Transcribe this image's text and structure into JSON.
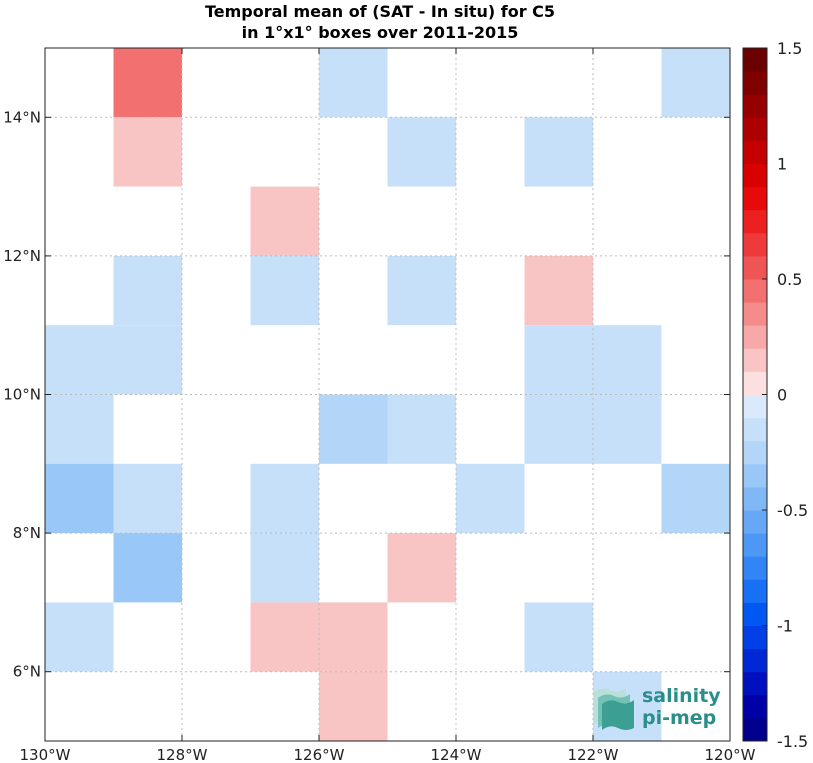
{
  "title": {
    "line1": "Temporal mean of (SAT - In situ) for C5",
    "line2": "in 1°x1° boxes over 2011-2015"
  },
  "chart_data": {
    "type": "heatmap",
    "title": "Temporal mean of (SAT - In situ) for C5 in 1°x1° boxes over 2011-2015",
    "x_range": [
      -130,
      -120
    ],
    "y_range": [
      5,
      15
    ],
    "x_ticks": [
      -130,
      -128,
      -126,
      -124,
      -122,
      -120
    ],
    "x_tick_labels": [
      "130°W",
      "128°W",
      "126°W",
      "124°W",
      "122°W",
      "120°W"
    ],
    "y_ticks": [
      6,
      8,
      10,
      12,
      14
    ],
    "y_tick_labels": [
      "6°N",
      "8°N",
      "10°N",
      "12°N",
      "14°N"
    ],
    "grid": true,
    "colorbar": {
      "range": [
        -1.5,
        1.5
      ],
      "ticks": [
        1.5,
        1,
        0.5,
        0,
        -0.5,
        -1,
        -1.5
      ],
      "tick_labels": [
        "1.5",
        "1",
        "0.5",
        "0",
        "-0.5",
        "-1",
        "-1.5"
      ],
      "levels": 30,
      "colors": [
        "#00008c",
        "#0000a6",
        "#0010bf",
        "#0028d4",
        "#0040e6",
        "#0058f2",
        "#1870f5",
        "#3385f5",
        "#4d97f5",
        "#66a8f5",
        "#80b8f5",
        "#99c7f7",
        "#b3d5f8",
        "#c7e0f9",
        "#dbeafb",
        "#fce0e0",
        "#f9c4c4",
        "#f7a8a8",
        "#f58c8c",
        "#f27070",
        "#f05555",
        "#ee3a3a",
        "#ec2020",
        "#e60a0a",
        "#d90000",
        "#c40000",
        "#ad0000",
        "#960000",
        "#800000",
        "#6a0000"
      ]
    },
    "cells": [
      {
        "lon": -128.5,
        "lat": 14.5,
        "value": 0.45
      },
      {
        "lon": -125.5,
        "lat": 14.5,
        "value": -0.1
      },
      {
        "lon": -120.5,
        "lat": 14.5,
        "value": -0.1
      },
      {
        "lon": -128.5,
        "lat": 13.5,
        "value": 0.15
      },
      {
        "lon": -124.5,
        "lat": 13.5,
        "value": -0.1
      },
      {
        "lon": -122.5,
        "lat": 13.5,
        "value": -0.1
      },
      {
        "lon": -126.5,
        "lat": 12.5,
        "value": 0.15
      },
      {
        "lon": -128.5,
        "lat": 11.5,
        "value": -0.1
      },
      {
        "lon": -126.5,
        "lat": 11.5,
        "value": -0.1
      },
      {
        "lon": -124.5,
        "lat": 11.5,
        "value": -0.1
      },
      {
        "lon": -122.5,
        "lat": 11.5,
        "value": 0.15
      },
      {
        "lon": -129.5,
        "lat": 10.5,
        "value": -0.1
      },
      {
        "lon": -128.5,
        "lat": 10.5,
        "value": -0.1
      },
      {
        "lon": -122.5,
        "lat": 10.5,
        "value": -0.1
      },
      {
        "lon": -121.5,
        "lat": 10.5,
        "value": -0.1
      },
      {
        "lon": -129.5,
        "lat": 9.5,
        "value": -0.1
      },
      {
        "lon": -125.5,
        "lat": 9.5,
        "value": -0.25
      },
      {
        "lon": -124.5,
        "lat": 9.5,
        "value": -0.1
      },
      {
        "lon": -122.5,
        "lat": 9.5,
        "value": -0.1
      },
      {
        "lon": -121.5,
        "lat": 9.5,
        "value": -0.1
      },
      {
        "lon": -129.5,
        "lat": 8.5,
        "value": -0.3
      },
      {
        "lon": -128.5,
        "lat": 8.5,
        "value": -0.1
      },
      {
        "lon": -126.5,
        "lat": 8.5,
        "value": -0.1
      },
      {
        "lon": -123.5,
        "lat": 8.5,
        "value": -0.1
      },
      {
        "lon": -120.5,
        "lat": 8.5,
        "value": -0.25
      },
      {
        "lon": -128.5,
        "lat": 7.5,
        "value": -0.3
      },
      {
        "lon": -126.5,
        "lat": 7.5,
        "value": -0.2
      },
      {
        "lon": -124.5,
        "lat": 7.5,
        "value": 0.15
      },
      {
        "lon": -129.5,
        "lat": 6.5,
        "value": -0.1
      },
      {
        "lon": -126.5,
        "lat": 6.5,
        "value": 0.15
      },
      {
        "lon": -125.5,
        "lat": 6.5,
        "value": 0.15
      },
      {
        "lon": -122.5,
        "lat": 6.5,
        "value": -0.1
      },
      {
        "lon": -125.5,
        "lat": 5.5,
        "value": 0.15
      },
      {
        "lon": -121.5,
        "lat": 5.5,
        "value": -0.1
      }
    ]
  },
  "logo": {
    "line1": "salinity",
    "line2": "pi-mep",
    "color": "#2a8f8a"
  }
}
